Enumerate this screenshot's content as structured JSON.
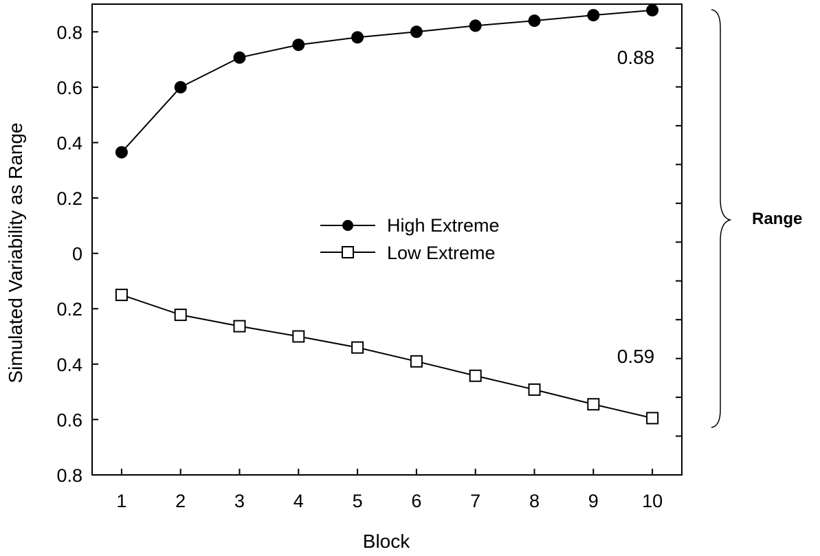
{
  "chart_data": {
    "type": "line",
    "xlabel": "Block",
    "ylabel": "Simulated Variability as Range",
    "x": [
      1,
      2,
      3,
      4,
      5,
      6,
      7,
      8,
      9,
      10
    ],
    "xlim": [
      0.5,
      10.5
    ],
    "ylim": [
      -0.8,
      0.9
    ],
    "y_ticks": [
      {
        "value": 0.8,
        "label": "0.8"
      },
      {
        "value": 0.6,
        "label": "0.6"
      },
      {
        "value": 0.4,
        "label": "0.4"
      },
      {
        "value": 0.2,
        "label": "0.2"
      },
      {
        "value": 0,
        "label": "0"
      },
      {
        "value": -0.2,
        "label": "0.2"
      },
      {
        "value": -0.4,
        "label": "0.4"
      },
      {
        "value": -0.6,
        "label": "0.6"
      },
      {
        "value": -0.8,
        "label": "0.8"
      }
    ],
    "x_ticks": [
      "1",
      "2",
      "3",
      "4",
      "5",
      "6",
      "7",
      "8",
      "9",
      "10"
    ],
    "series": [
      {
        "name": "High Extreme",
        "marker": "filled-circle",
        "color": "#000000",
        "values": [
          0.365,
          0.6,
          0.707,
          0.753,
          0.78,
          0.8,
          0.822,
          0.84,
          0.86,
          0.878
        ]
      },
      {
        "name": "Low Extreme",
        "marker": "open-square",
        "color": "#000000",
        "values": [
          -0.15,
          -0.222,
          -0.263,
          -0.3,
          -0.34,
          -0.39,
          -0.442,
          -0.492,
          -0.545,
          -0.595
        ]
      }
    ],
    "annotations": [
      {
        "text": "0.88",
        "series": 0
      },
      {
        "text": "0.59",
        "series": 1
      }
    ],
    "bracket_label": "Range",
    "legend_position": "center",
    "grid": false
  }
}
